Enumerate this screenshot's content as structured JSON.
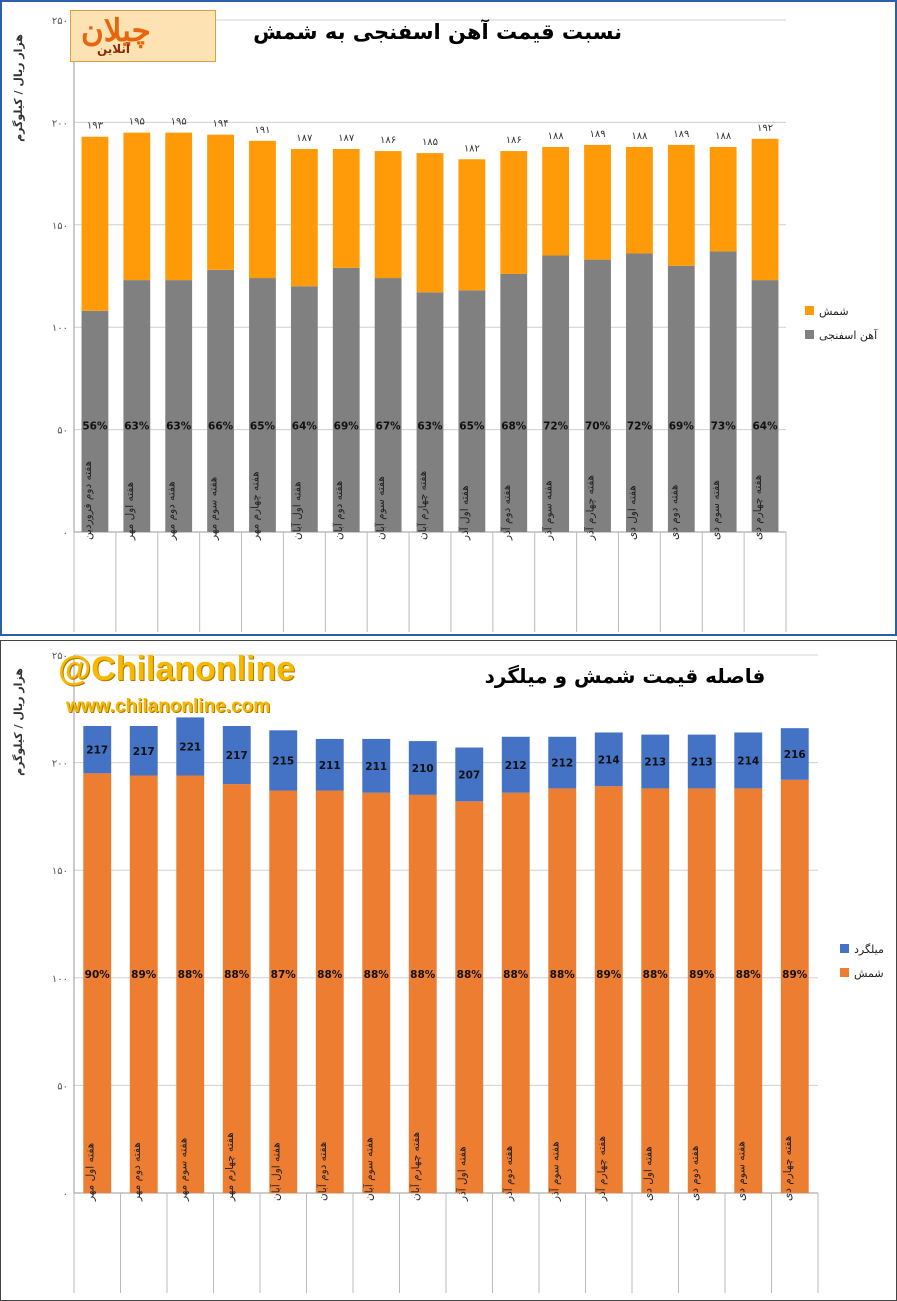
{
  "branding": {
    "logo_text": "چیلان",
    "logo_sub": "آنلاین",
    "handle": "@Chilanonline",
    "website": "www.chilanonline.com"
  },
  "chart_data": [
    {
      "type": "bar",
      "stacked": true,
      "title": "نسبت قیمت آهن اسفنجی به شمش",
      "ylabel": "هزار ریال / کیلوگرم",
      "ylim": [
        0,
        250
      ],
      "yticks": [
        "۰",
        "۵۰",
        "۱۰۰",
        "۱۵۰",
        "۲۰۰",
        "۲۵۰"
      ],
      "ytick_values": [
        0,
        50,
        100,
        150,
        200,
        250
      ],
      "grid": true,
      "legend_position": "right",
      "categories": [
        "هفته دوم فروردین",
        "هفته اول مهر",
        "هفته دوم مهر",
        "هفته سوم مهر",
        "هفته چهارم مهر",
        "هفته اول آبان",
        "هفته دوم آبان",
        "هفته سوم آبان",
        "هفته چهارم آبان",
        "هفته اول آذر",
        "هفته دوم آذر",
        "هفته سوم آذر",
        "هفته چهارم آذر",
        "هفته اول دی",
        "هفته دوم دی",
        "هفته سوم دی",
        "هفته چهارم دی"
      ],
      "totals": [
        193,
        195,
        195,
        194,
        191,
        187,
        187,
        186,
        185,
        182,
        186,
        188,
        189,
        188,
        189,
        188,
        192
      ],
      "total_labels": [
        "۱۹۳",
        "۱۹۵",
        "۱۹۵",
        "۱۹۴",
        "۱۹۱",
        "۱۸۷",
        "۱۸۷",
        "۱۸۶",
        "۱۸۵",
        "۱۸۲",
        "۱۸۶",
        "۱۸۸",
        "۱۸۹",
        "۱۸۸",
        "۱۸۹",
        "۱۸۸",
        "۱۹۲"
      ],
      "series": [
        {
          "name": "آهن اسفنجی",
          "color": "#808080",
          "values": [
            108,
            123,
            123,
            128,
            124,
            120,
            129,
            124,
            117,
            118,
            126,
            135,
            133,
            136,
            130,
            137,
            123
          ],
          "labels": [
            "56%",
            "63%",
            "63%",
            "66%",
            "65%",
            "64%",
            "69%",
            "67%",
            "63%",
            "65%",
            "68%",
            "72%",
            "70%",
            "72%",
            "69%",
            "73%",
            "64%"
          ]
        },
        {
          "name": "شمش",
          "color": "#ff9a08",
          "values": [
            85,
            72,
            72,
            66,
            67,
            67,
            58,
            62,
            68,
            64,
            60,
            53,
            56,
            52,
            59,
            51,
            69
          ]
        }
      ]
    },
    {
      "type": "bar",
      "stacked": true,
      "title": "فاصله  قیمت شمش و میلگرد",
      "ylabel": "هزار ریال / کیلوگرم",
      "ylim": [
        0,
        250
      ],
      "yticks": [
        "۰",
        "۵۰",
        "۱۰۰",
        "۱۵۰",
        "۲۰۰",
        "۲۵۰"
      ],
      "ytick_values": [
        0,
        50,
        100,
        150,
        200,
        250
      ],
      "grid": true,
      "legend_position": "right",
      "categories": [
        "هفته اول مهر",
        "هفته دوم مهر",
        "هفته سوم مهر",
        "هفته چهارم مهر",
        "هفته اول آبان",
        "هفته دوم آبان",
        "هفته سوم آبان",
        "هفته چهارم آبان",
        "هفته اول آذر",
        "هفته دوم آذر",
        "هفته سوم آذر",
        "هفته چهارم آذر",
        "هفته اول دی",
        "هفته دوم دی",
        "هفته سوم دی",
        "هفته چهارم دی"
      ],
      "series": [
        {
          "name": "شمش",
          "color": "#ed7d31",
          "values": [
            195,
            194,
            194,
            190,
            187,
            187,
            186,
            185,
            182,
            186,
            188,
            189,
            188,
            188,
            188,
            192
          ],
          "labels": [
            "90%",
            "89%",
            "88%",
            "88%",
            "87%",
            "88%",
            "88%",
            "88%",
            "88%",
            "88%",
            "88%",
            "89%",
            "88%",
            "89%",
            "88%",
            "89%"
          ]
        },
        {
          "name": "میلگرد",
          "color": "#4472c4",
          "values": [
            22,
            23,
            27,
            27,
            28,
            24,
            25,
            25,
            25,
            26,
            24,
            25,
            25,
            25,
            26,
            24
          ],
          "labels": [
            "217",
            "217",
            "221",
            "217",
            "215",
            "211",
            "211",
            "210",
            "207",
            "212",
            "212",
            "214",
            "213",
            "213",
            "214",
            "216"
          ]
        }
      ]
    }
  ]
}
